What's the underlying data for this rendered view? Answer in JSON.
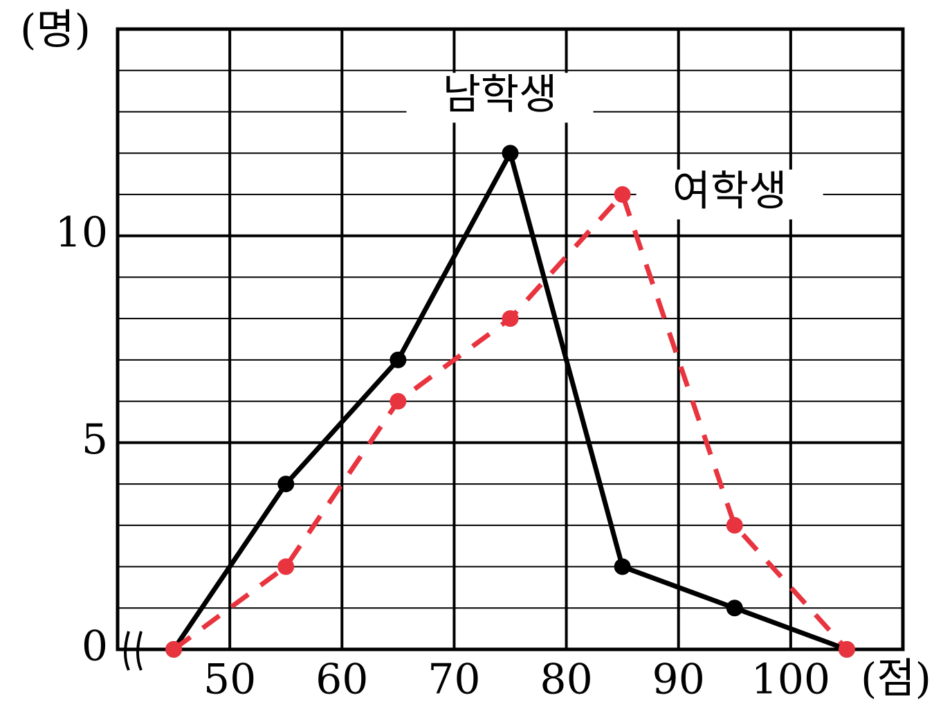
{
  "chart_data": {
    "type": "line",
    "y_axis_label": "(명)",
    "x_axis_label": "(점)",
    "x": [
      45,
      55,
      65,
      75,
      85,
      95,
      105
    ],
    "series": [
      {
        "name": "남학생",
        "color": "#000000",
        "dashed": false,
        "values": [
          0,
          4,
          7,
          12,
          2,
          1,
          0
        ]
      },
      {
        "name": "여학생",
        "color": "#e8343f",
        "dashed": true,
        "values": [
          0,
          2,
          6,
          8,
          11,
          3,
          0
        ]
      }
    ],
    "xlim": [
      40,
      110
    ],
    "ylim": [
      0,
      15
    ],
    "xticks": [
      50,
      60,
      70,
      80,
      90,
      100
    ],
    "yticks": [
      0,
      5,
      10
    ],
    "yminorticks": [
      1,
      2,
      3,
      4,
      6,
      7,
      8,
      9,
      11,
      12,
      13,
      14
    ],
    "grid": true
  }
}
